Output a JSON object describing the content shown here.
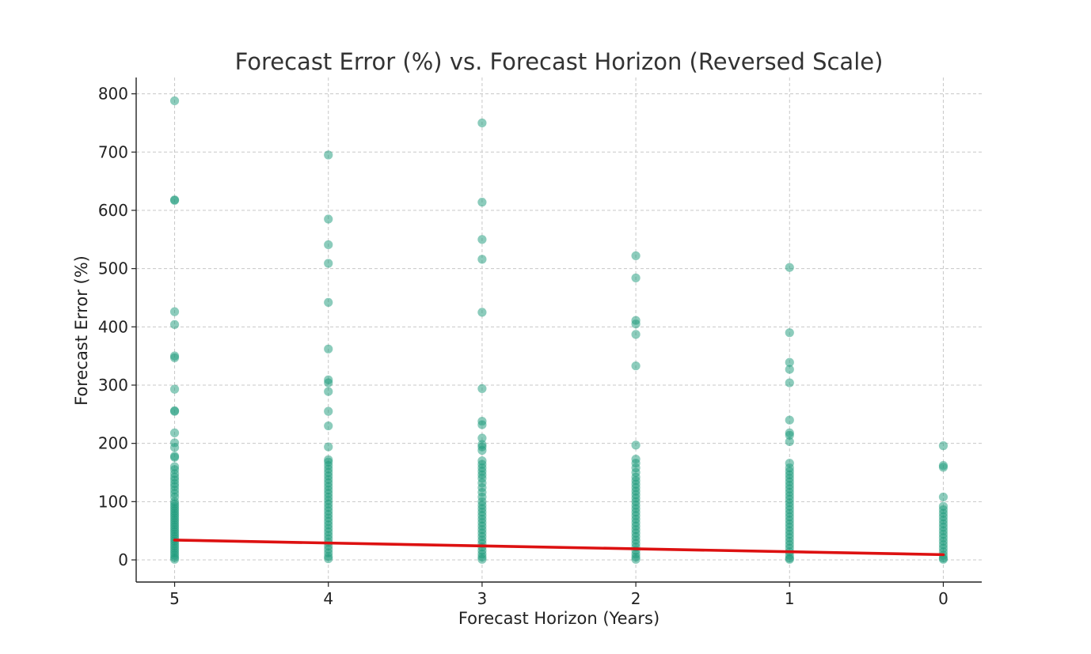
{
  "chart_data": {
    "type": "scatter",
    "title": "Forecast Error (%) vs. Forecast Horizon (Reversed Scale)",
    "xlabel": "Forecast Horizon (Years)",
    "ylabel": "Forecast Error (%)",
    "x_reversed": true,
    "xlim": [
      5.25,
      -0.25
    ],
    "ylim": [
      -38,
      828
    ],
    "x_ticks": [
      5,
      4,
      3,
      2,
      1,
      0
    ],
    "y_ticks": [
      0,
      100,
      200,
      300,
      400,
      500,
      600,
      700,
      800
    ],
    "grid": true,
    "colors": {
      "points": "#1a9a7a",
      "trend": "#dd1111",
      "grid": "#c8c8c8",
      "axis": "#222222"
    },
    "series": [
      {
        "type": "scatter",
        "points_by_x": [
          {
            "x": 5,
            "y": [
              788,
              618,
              617,
              426,
              404,
              350,
              347,
              293,
              256,
              255,
              218,
              201,
              193,
              178,
              176,
              160,
              155,
              148,
              142,
              137,
              131,
              126,
              120,
              114,
              108,
              100,
              96,
              92,
              88,
              84,
              80,
              76,
              72,
              68,
              64,
              60,
              56,
              52,
              48,
              44,
              40,
              36,
              32,
              28,
              24,
              20,
              16,
              12,
              8,
              4,
              1
            ]
          },
          {
            "x": 4,
            "y": [
              695,
              585,
              541,
              509,
              442,
              362,
              309,
              304,
              289,
              255,
              230,
              194,
              172,
              168,
              162,
              156,
              150,
              144,
              138,
              132,
              126,
              120,
              114,
              108,
              102,
              96,
              90,
              84,
              78,
              72,
              66,
              60,
              54,
              48,
              42,
              36,
              30,
              24,
              18,
              12,
              6,
              2
            ]
          },
          {
            "x": 3,
            "y": [
              750,
              614,
              550,
              516,
              425,
              294,
              238,
              232,
              209,
              198,
              194,
              188,
              170,
              164,
              158,
              152,
              146,
              140,
              132,
              124,
              116,
              108,
              100,
              94,
              88,
              82,
              76,
              70,
              64,
              58,
              52,
              46,
              40,
              34,
              28,
              22,
              16,
              10,
              5,
              1
            ]
          },
          {
            "x": 2,
            "y": [
              522,
              484,
              411,
              405,
              387,
              333,
              197,
              173,
              166,
              158,
              150,
              142,
              136,
              130,
              124,
              118,
              112,
              106,
              100,
              94,
              88,
              82,
              76,
              70,
              64,
              58,
              52,
              46,
              40,
              34,
              28,
              22,
              16,
              10,
              5,
              1
            ]
          },
          {
            "x": 1,
            "y": [
              502,
              390,
              339,
              327,
              304,
              240,
              218,
              214,
              203,
              166,
              158,
              152,
              146,
              140,
              134,
              128,
              122,
              116,
              110,
              104,
              98,
              92,
              86,
              80,
              74,
              68,
              62,
              56,
              50,
              44,
              38,
              32,
              26,
              20,
              14,
              8,
              3,
              1
            ]
          },
          {
            "x": 0,
            "y": [
              196,
              162,
              159,
              108,
              92,
              86,
              80,
              74,
              68,
              62,
              56,
              50,
              44,
              38,
              32,
              26,
              20,
              14,
              8,
              3,
              1
            ]
          }
        ]
      },
      {
        "type": "line",
        "x": [
          5,
          0
        ],
        "y": [
          34,
          9
        ]
      }
    ]
  }
}
